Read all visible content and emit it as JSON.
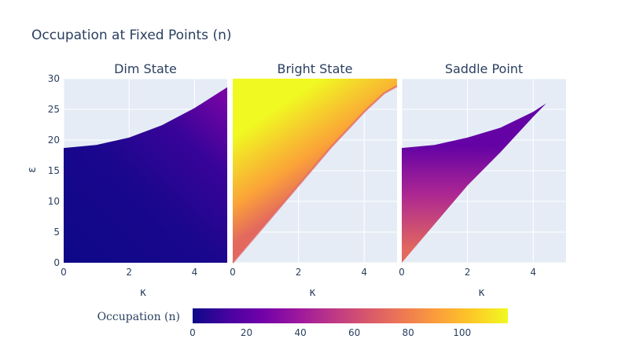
{
  "chart_data": {
    "type": "heatmap",
    "title": "Occupation at Fixed Points (n)",
    "ylabel": "ε",
    "colorscale": "plasma",
    "colorbar": {
      "title": "Occupation (n)",
      "range": [
        0,
        117
      ],
      "ticks": [
        0,
        20,
        40,
        60,
        80,
        100
      ],
      "tick_labels": [
        "0",
        "20",
        "40",
        "60",
        "80",
        "100"
      ]
    },
    "shared_y": {
      "range": [
        0,
        30
      ],
      "ticks": [
        0,
        5,
        10,
        15,
        20,
        25,
        30
      ],
      "tick_labels": [
        "0",
        "5",
        "10",
        "15",
        "20",
        "25",
        "30"
      ]
    },
    "panels": [
      {
        "title": "Dim State",
        "xlabel": "κ",
        "xlim": [
          0,
          5
        ],
        "x_ticks": [
          0,
          2,
          4
        ],
        "x_tick_labels": [
          "0",
          "2",
          "4"
        ],
        "region": "below upper boundary",
        "upper_boundary": [
          [
            0,
            18.7
          ],
          [
            1,
            19.2
          ],
          [
            2,
            20.4
          ],
          [
            3,
            22.4
          ],
          [
            4,
            25.2
          ],
          [
            5,
            28.6
          ]
        ],
        "value_samples": [
          [
            0,
            0,
            0
          ],
          [
            2,
            10,
            2
          ],
          [
            4,
            20,
            8
          ],
          [
            4.8,
            28,
            25
          ]
        ]
      },
      {
        "title": "Bright State",
        "xlabel": "κ",
        "xlim": [
          0,
          5
        ],
        "x_ticks": [
          0,
          2,
          4
        ],
        "x_tick_labels": [
          "0",
          "2",
          "4"
        ],
        "region": "above lower boundary",
        "lower_boundary": [
          [
            0,
            0
          ],
          [
            1,
            6.3
          ],
          [
            2,
            12.6
          ],
          [
            3,
            18.9
          ],
          [
            4,
            24.6
          ],
          [
            4.6,
            27.6
          ],
          [
            5,
            28.8
          ]
        ],
        "value_samples": [
          [
            0.2,
            2,
            75
          ],
          [
            2,
            20,
            100
          ],
          [
            0.5,
            29,
            117
          ]
        ]
      },
      {
        "title": "Saddle Point",
        "xlabel": "κ",
        "xlim": [
          0,
          5
        ],
        "x_ticks": [
          0,
          2,
          4
        ],
        "x_tick_labels": [
          "0",
          "2",
          "4"
        ],
        "region": "between boundaries",
        "upper_boundary": [
          [
            0,
            18.7
          ],
          [
            1,
            19.2
          ],
          [
            2,
            20.4
          ],
          [
            3,
            22.0
          ],
          [
            4,
            24.6
          ],
          [
            4.4,
            26.0
          ]
        ],
        "lower_boundary": [
          [
            0,
            0
          ],
          [
            1,
            6.3
          ],
          [
            2,
            12.6
          ],
          [
            3,
            18.0
          ],
          [
            4,
            23.8
          ],
          [
            4.4,
            26.0
          ]
        ],
        "value_samples": [
          [
            0.2,
            18,
            25
          ],
          [
            0.2,
            2,
            70
          ],
          [
            3,
            20,
            45
          ]
        ]
      }
    ]
  }
}
